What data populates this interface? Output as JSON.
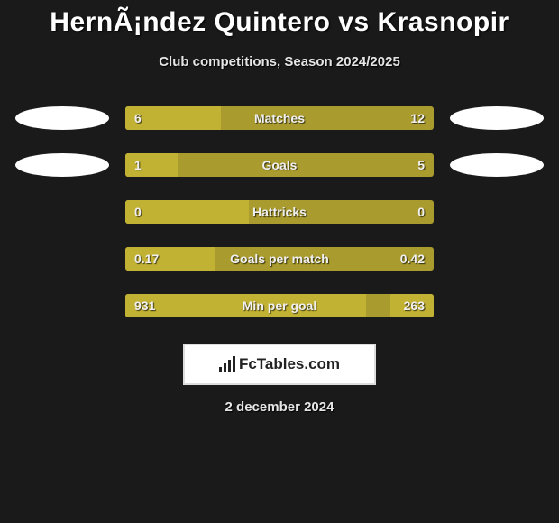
{
  "title": "HernÃ¡ndez Quintero vs Krasnopir",
  "subtitle": "Club competitions, Season 2024/2025",
  "colors": {
    "bar_bg": "#a99b2d",
    "bar_fill": "#c2b233",
    "page_bg": "#1a1a1a",
    "ellipse": "#ffffff"
  },
  "rows": [
    {
      "label": "Matches",
      "left": "6",
      "right": "12",
      "left_pct": 31,
      "right_pct": 0,
      "show_side": true
    },
    {
      "label": "Goals",
      "left": "1",
      "right": "5",
      "left_pct": 17,
      "right_pct": 0,
      "show_side": true
    },
    {
      "label": "Hattricks",
      "left": "0",
      "right": "0",
      "left_pct": 40,
      "right_pct": 0,
      "show_side": false
    },
    {
      "label": "Goals per match",
      "left": "0.17",
      "right": "0.42",
      "left_pct": 29,
      "right_pct": 0,
      "show_side": false
    },
    {
      "label": "Min per goal",
      "left": "931",
      "right": "263",
      "left_pct": 78,
      "right_pct": 14,
      "show_side": false
    }
  ],
  "logo_text": "FcTables.com",
  "date_line": "2 december 2024"
}
